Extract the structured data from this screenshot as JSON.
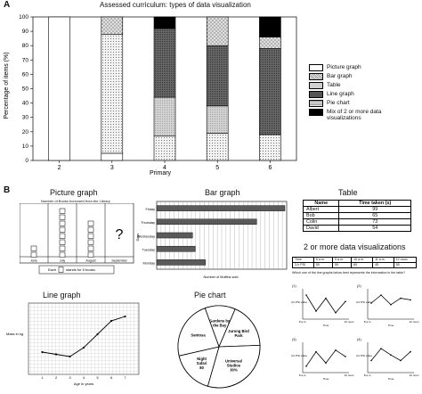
{
  "panel_a": {
    "letter": "A",
    "chart_data": {
      "type": "bar",
      "stacked": true,
      "title": "Assessed curriculum: types of data visualization",
      "xlabel": "Primary",
      "ylabel": "Percentage of items (%)",
      "categories": [
        "2",
        "3",
        "4",
        "5",
        "6"
      ],
      "ylim": [
        0,
        100
      ],
      "yticks": [
        "0",
        "10",
        "20",
        "30",
        "40",
        "50",
        "60",
        "70",
        "80",
        "90",
        "100"
      ],
      "legend_position": "right",
      "series": [
        {
          "name": "Picture graph",
          "values": [
            100,
            5,
            0,
            0,
            0
          ]
        },
        {
          "name": "Bar graph",
          "values": [
            0,
            83,
            17,
            19,
            18
          ]
        },
        {
          "name": "Table",
          "values": [
            0,
            0,
            27,
            19,
            0
          ]
        },
        {
          "name": "Line graph",
          "values": [
            0,
            0,
            48,
            42,
            60
          ]
        },
        {
          "name": "Pie chart",
          "values": [
            0,
            12,
            0,
            20,
            8
          ]
        },
        {
          "name": "Mix of 2 or more data visualizations",
          "values": [
            0,
            0,
            8,
            0,
            14
          ]
        }
      ],
      "colors": {
        "picture": "#ffffff",
        "bar": "#e8e8e8",
        "table": "#d6d6d6",
        "line": "#555555",
        "pie": "#c8c8c8",
        "mix": "#000000"
      }
    }
  },
  "panel_b": {
    "letter": "B",
    "picture_graph": {
      "title": "Picture graph",
      "subtitle": "Number of Books borrowed from the Library",
      "months": [
        "June",
        "July",
        "August",
        "September"
      ],
      "books": [
        2,
        8,
        6,
        0
      ],
      "unknown_mark": "?",
      "key_label": "Each",
      "key_text": "stands for 5 books."
    },
    "bar_graph": {
      "title": "Bar graph",
      "ylabel": "Days",
      "xlabel": "Number of Muffins sold",
      "chart_data": {
        "type": "bar",
        "orientation": "horizontal",
        "categories": [
          "Friday",
          "Thursday",
          "Wednesday",
          "Tuesday",
          "Monday"
        ],
        "values": [
          100,
          78,
          28,
          30,
          38
        ],
        "xlim": [
          0,
          100
        ]
      }
    },
    "table": {
      "title": "Table",
      "headers": [
        "Name",
        "Time taken (s)"
      ],
      "rows": [
        [
          "Albert",
          "99"
        ],
        [
          "Bob",
          "65"
        ],
        [
          "Colin",
          "73"
        ],
        [
          "David",
          "54"
        ]
      ]
    },
    "mix": {
      "title": "2 or more data visualizations",
      "times": [
        "Time",
        "8 a.m.",
        "9 a.m.",
        "10 a.m.",
        "11 a.m.",
        "12 noon"
      ],
      "psi_label": "3-h PSI",
      "psi": [
        "",
        "50",
        "55",
        "60",
        "45",
        "55"
      ],
      "question": "Which one of the line graphs below best represents the information in the table?",
      "options": [
        "(1)",
        "(2)",
        "(3)",
        "(4)"
      ],
      "axis_x": "Time",
      "axis_y": "3-h PSI value",
      "t_start": "8 a.m.",
      "t_end": "12 noon"
    },
    "line_graph": {
      "title": "Line graph",
      "ylabel": "Mass in kg",
      "xlabel": "Age in years",
      "chart_data": {
        "type": "line",
        "x": [
          1,
          2,
          3,
          4,
          5,
          6,
          7
        ],
        "y": [
          13,
          12.5,
          12,
          14,
          17,
          20,
          21
        ],
        "xticks": [
          "1",
          "2",
          "3",
          "4",
          "5",
          "6",
          "7"
        ],
        "ylim": [
          8,
          24
        ]
      }
    },
    "pie_chart": {
      "title": "Pie chart",
      "chart_data": {
        "type": "pie",
        "slices": [
          {
            "label": "Gardens by the Bay",
            "percent": 12
          },
          {
            "label": "Jurong Bird Park",
            "percent": 18
          },
          {
            "label": "Universal Studios",
            "value_label": "30%",
            "percent": 30
          },
          {
            "label": "Night Safari",
            "value_label": "80",
            "percent": 17
          },
          {
            "label": "Sentosa",
            "percent": 23
          }
        ]
      }
    }
  }
}
